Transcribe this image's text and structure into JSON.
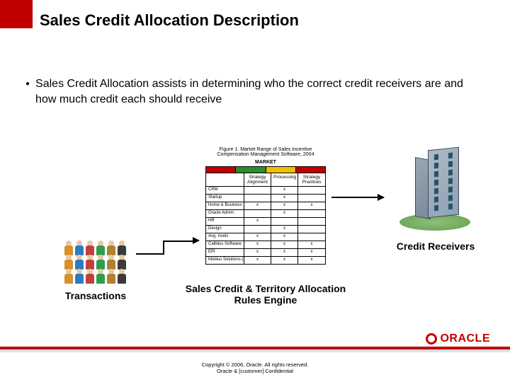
{
  "colors": {
    "accent_red": "#c00000",
    "background": "#ffffff",
    "text": "#000000",
    "building_light": "#aeb9c4",
    "building_dark": "#8fa1b3",
    "building_side_light": "#9aa6b3",
    "building_side_dark": "#7a8a9a",
    "building_border": "#3a4a5a",
    "window": "#28536b",
    "grass_inner": "#8fbf7a",
    "grass_outer": "#6fa95b",
    "footer_grey": "#e0e0e0"
  },
  "title": "Sales Credit Allocation Description",
  "bullet": "Sales Credit Allocation assists in determining who the correct credit receivers are and how much credit each should receive",
  "diagram": {
    "transactions_label": "Transactions",
    "engine_label": "Sales Credit & Territory Allocation Rules Engine",
    "receivers_label": "Credit Receivers",
    "engine_caption": "Figure 1: Market Range of Sales Incentive Compensation Management Software, 2004",
    "engine_toplabel": "MARKET",
    "engine_bar_colors": [
      "#c00000",
      "#2e8b2e",
      "#f0c000",
      "#c00000"
    ],
    "engine_headers": [
      "",
      "Strategy Alignment",
      "Processing",
      "Strategy Practices"
    ],
    "engine_rows": [
      [
        "CRM",
        "",
        "x",
        ""
      ],
      [
        "Startup",
        "",
        "x",
        ""
      ],
      [
        "Home & Business Serv.",
        "x",
        "x",
        "x"
      ],
      [
        "Oracle Admin",
        "",
        "x",
        ""
      ],
      [
        "HR",
        "x",
        "",
        ""
      ],
      [
        "Design",
        "",
        "x",
        ""
      ],
      [
        "Avg. mods",
        "x",
        "x",
        ""
      ],
      [
        "Callidus Software",
        "x",
        "x",
        "x"
      ],
      [
        "EPI",
        "x",
        "x",
        "x"
      ],
      [
        "Mobius Solutions (IMRO)",
        "x",
        "x",
        "x"
      ]
    ],
    "people_colors": [
      "#d98f2e",
      "#2e7bbf",
      "#c04040",
      "#2e9e4e",
      "#b0812e",
      "#3a3a3a"
    ]
  },
  "logo_text": "ORACLE",
  "copyright_line1": "Copyright © 2006, Oracle. All rights reserved.",
  "copyright_line2": "Oracle & [customer] Confidential"
}
